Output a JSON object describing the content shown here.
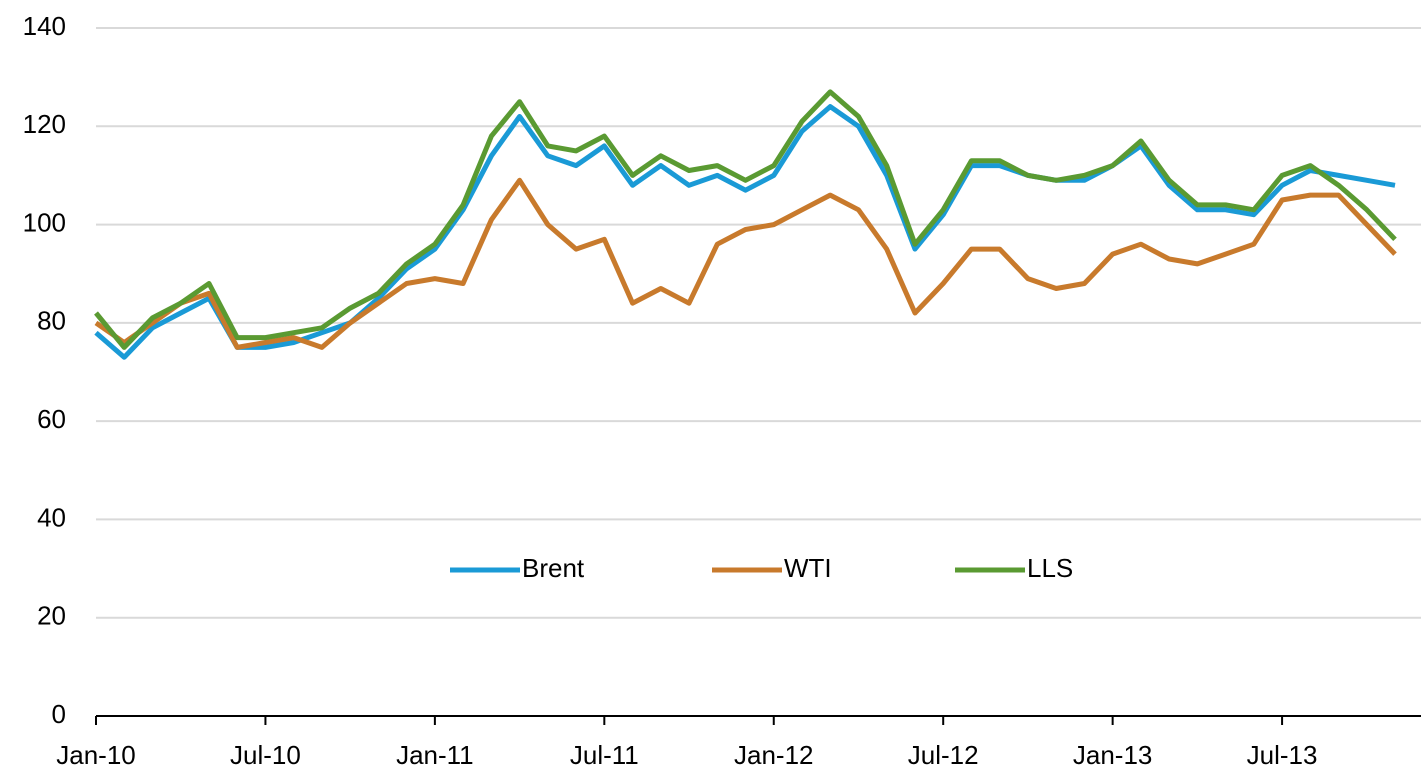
{
  "chart_data": {
    "type": "line",
    "categories": [
      "Jan-10",
      null,
      null,
      null,
      null,
      null,
      "Jul-10",
      null,
      null,
      null,
      null,
      null,
      "Jan-11",
      null,
      null,
      null,
      null,
      null,
      "Jul-11",
      null,
      null,
      null,
      null,
      null,
      "Jan-12",
      null,
      null,
      null,
      null,
      null,
      "Jul-12",
      null,
      null,
      null,
      null,
      null,
      "Jan-13",
      null,
      null,
      null,
      null,
      null,
      "Jul-13",
      null,
      null,
      null,
      null
    ],
    "series": [
      {
        "name": "Brent",
        "color": "#1a9ad6",
        "values": [
          78,
          73,
          79,
          82,
          85,
          75,
          75,
          76,
          78,
          80,
          85,
          91,
          95,
          103,
          114,
          122,
          114,
          112,
          116,
          108,
          112,
          108,
          110,
          107,
          110,
          119,
          124,
          120,
          110,
          95,
          102,
          112,
          112,
          110,
          109,
          109,
          112,
          116,
          108,
          103,
          103,
          102,
          108,
          111,
          110,
          109,
          108
        ]
      },
      {
        "name": "WTI",
        "color": "#c87a2c",
        "values": [
          80,
          76,
          80,
          84,
          86,
          75,
          76,
          77,
          75,
          80,
          84,
          88,
          89,
          88,
          101,
          109,
          100,
          95,
          97,
          84,
          87,
          84,
          96,
          99,
          100,
          103,
          106,
          103,
          95,
          82,
          88,
          95,
          95,
          89,
          87,
          88,
          94,
          96,
          93,
          92,
          94,
          96,
          105,
          106,
          106,
          100,
          94
        ]
      },
      {
        "name": "LLS",
        "color": "#5a9a32",
        "values": [
          82,
          75,
          81,
          84,
          88,
          77,
          77,
          78,
          79,
          83,
          86,
          92,
          96,
          104,
          118,
          125,
          116,
          115,
          118,
          110,
          114,
          111,
          112,
          109,
          112,
          121,
          127,
          122,
          112,
          96,
          103,
          113,
          113,
          110,
          109,
          110,
          112,
          117,
          109,
          104,
          104,
          103,
          110,
          112,
          108,
          103,
          97
        ]
      }
    ],
    "ylim": [
      0,
      140
    ],
    "yticks": [
      0,
      20,
      40,
      60,
      80,
      100,
      120,
      140
    ],
    "grid": true
  }
}
